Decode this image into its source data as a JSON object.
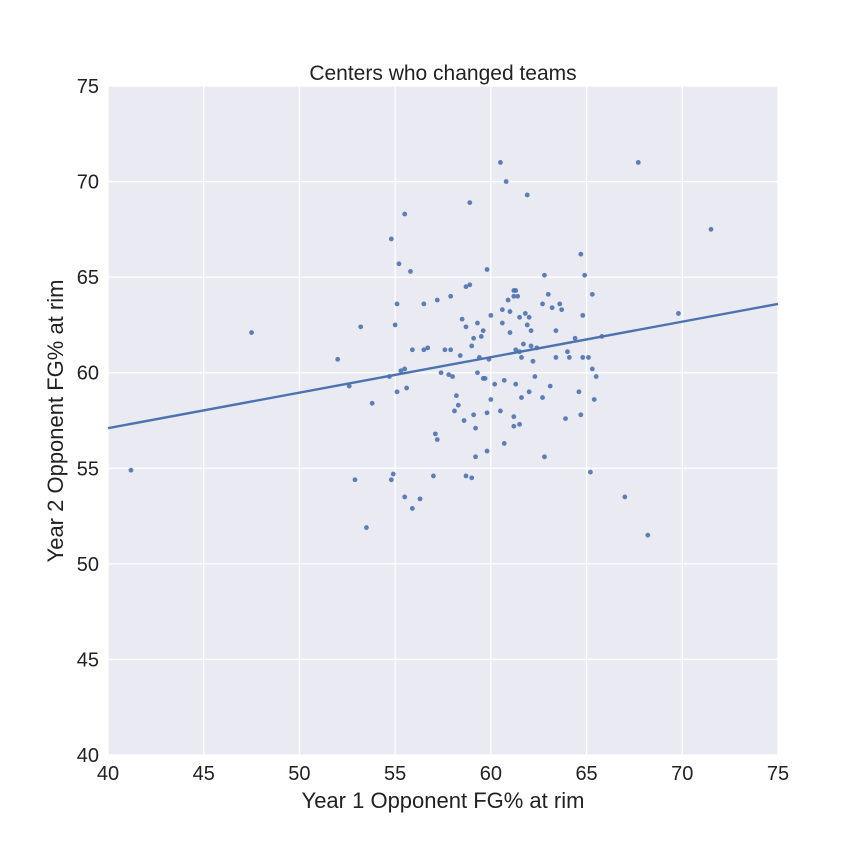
{
  "chart_data": {
    "type": "scatter",
    "title": "Centers who changed teams",
    "xlabel": "Year 1 Opponent FG% at rim",
    "ylabel": "Year 2 Opponent FG% at rim",
    "xlim": [
      40,
      75
    ],
    "ylim": [
      40,
      75
    ],
    "xticks": [
      "40",
      "45",
      "50",
      "55",
      "60",
      "65",
      "70",
      "75"
    ],
    "yticks": [
      "40",
      "45",
      "50",
      "55",
      "60",
      "65",
      "70",
      "75"
    ],
    "grid": true,
    "legend": "none",
    "colors": {
      "background": "#eaeaf2",
      "grid": "#ffffff",
      "points": "#4c72b0",
      "line": "#4c72b0"
    },
    "trend_line": {
      "x": [
        40,
        75
      ],
      "y": [
        57.1,
        63.6
      ]
    },
    "points": [
      [
        41.2,
        54.9
      ],
      [
        47.5,
        62.1
      ],
      [
        52.0,
        60.7
      ],
      [
        52.6,
        59.3
      ],
      [
        52.9,
        54.4
      ],
      [
        53.2,
        62.4
      ],
      [
        53.5,
        51.9
      ],
      [
        53.8,
        58.4
      ],
      [
        54.7,
        59.8
      ],
      [
        54.8,
        54.4
      ],
      [
        54.8,
        67.0
      ],
      [
        54.9,
        54.7
      ],
      [
        55.0,
        62.5
      ],
      [
        55.1,
        63.6
      ],
      [
        55.1,
        59.0
      ],
      [
        55.2,
        65.7
      ],
      [
        55.3,
        60.1
      ],
      [
        55.5,
        68.3
      ],
      [
        55.5,
        60.2
      ],
      [
        55.5,
        53.5
      ],
      [
        55.6,
        59.2
      ],
      [
        55.8,
        65.3
      ],
      [
        55.9,
        61.2
      ],
      [
        55.9,
        52.9
      ],
      [
        56.3,
        53.4
      ],
      [
        56.5,
        61.2
      ],
      [
        56.5,
        63.6
      ],
      [
        56.7,
        61.3
      ],
      [
        57.0,
        54.6
      ],
      [
        57.1,
        56.8
      ],
      [
        57.2,
        56.5
      ],
      [
        57.2,
        63.8
      ],
      [
        57.4,
        60.0
      ],
      [
        57.6,
        61.2
      ],
      [
        57.8,
        59.9
      ],
      [
        57.9,
        61.2
      ],
      [
        57.9,
        64.0
      ],
      [
        58.0,
        59.8
      ],
      [
        58.1,
        58.0
      ],
      [
        58.2,
        58.8
      ],
      [
        58.3,
        58.3
      ],
      [
        58.4,
        60.9
      ],
      [
        58.5,
        62.8
      ],
      [
        58.6,
        57.5
      ],
      [
        58.7,
        54.6
      ],
      [
        58.7,
        64.5
      ],
      [
        58.7,
        62.4
      ],
      [
        58.9,
        64.6
      ],
      [
        58.9,
        68.9
      ],
      [
        59.0,
        54.5
      ],
      [
        59.0,
        61.4
      ],
      [
        59.1,
        61.8
      ],
      [
        59.1,
        57.8
      ],
      [
        59.2,
        57.1
      ],
      [
        59.2,
        55.6
      ],
      [
        59.3,
        60.0
      ],
      [
        59.3,
        62.6
      ],
      [
        59.4,
        60.8
      ],
      [
        59.5,
        61.9
      ],
      [
        59.6,
        62.2
      ],
      [
        59.6,
        59.7
      ],
      [
        59.7,
        59.7
      ],
      [
        59.8,
        65.4
      ],
      [
        59.8,
        55.9
      ],
      [
        59.8,
        57.9
      ],
      [
        59.9,
        60.7
      ],
      [
        60.0,
        58.6
      ],
      [
        60.0,
        63.0
      ],
      [
        60.2,
        59.4
      ],
      [
        60.5,
        71.0
      ],
      [
        60.5,
        58.0
      ],
      [
        60.6,
        62.6
      ],
      [
        60.6,
        63.3
      ],
      [
        60.7,
        56.3
      ],
      [
        60.7,
        59.6
      ],
      [
        60.8,
        70.0
      ],
      [
        60.9,
        63.8
      ],
      [
        61.0,
        63.2
      ],
      [
        61.0,
        62.1
      ],
      [
        61.2,
        64.3
      ],
      [
        61.2,
        64.0
      ],
      [
        61.2,
        57.7
      ],
      [
        61.2,
        57.2
      ],
      [
        61.3,
        59.4
      ],
      [
        61.3,
        61.2
      ],
      [
        61.3,
        64.3
      ],
      [
        61.4,
        64.0
      ],
      [
        61.5,
        62.9
      ],
      [
        61.5,
        61.1
      ],
      [
        61.5,
        57.3
      ],
      [
        61.6,
        60.8
      ],
      [
        61.6,
        58.7
      ],
      [
        61.7,
        61.5
      ],
      [
        61.8,
        63.1
      ],
      [
        61.9,
        69.3
      ],
      [
        61.9,
        62.5
      ],
      [
        62.0,
        62.9
      ],
      [
        62.0,
        59.0
      ],
      [
        62.1,
        62.2
      ],
      [
        62.1,
        61.4
      ],
      [
        62.2,
        60.6
      ],
      [
        62.3,
        59.8
      ],
      [
        62.4,
        61.3
      ],
      [
        62.7,
        63.6
      ],
      [
        62.7,
        58.7
      ],
      [
        62.8,
        65.1
      ],
      [
        62.8,
        55.6
      ],
      [
        63.0,
        64.1
      ],
      [
        63.1,
        59.3
      ],
      [
        63.2,
        63.4
      ],
      [
        63.4,
        62.2
      ],
      [
        63.4,
        60.8
      ],
      [
        63.6,
        63.6
      ],
      [
        63.7,
        63.3
      ],
      [
        63.9,
        57.6
      ],
      [
        64.0,
        61.1
      ],
      [
        64.1,
        60.8
      ],
      [
        64.4,
        61.8
      ],
      [
        64.6,
        59.0
      ],
      [
        64.7,
        57.8
      ],
      [
        64.7,
        66.2
      ],
      [
        64.8,
        63.0
      ],
      [
        64.8,
        60.8
      ],
      [
        64.9,
        65.1
      ],
      [
        65.1,
        60.8
      ],
      [
        65.2,
        54.8
      ],
      [
        65.3,
        60.2
      ],
      [
        65.3,
        64.1
      ],
      [
        65.5,
        59.8
      ],
      [
        65.4,
        58.6
      ],
      [
        65.8,
        61.9
      ],
      [
        67.0,
        53.5
      ],
      [
        67.7,
        71.0
      ],
      [
        68.2,
        51.5
      ],
      [
        69.8,
        63.1
      ],
      [
        71.5,
        67.5
      ]
    ]
  }
}
